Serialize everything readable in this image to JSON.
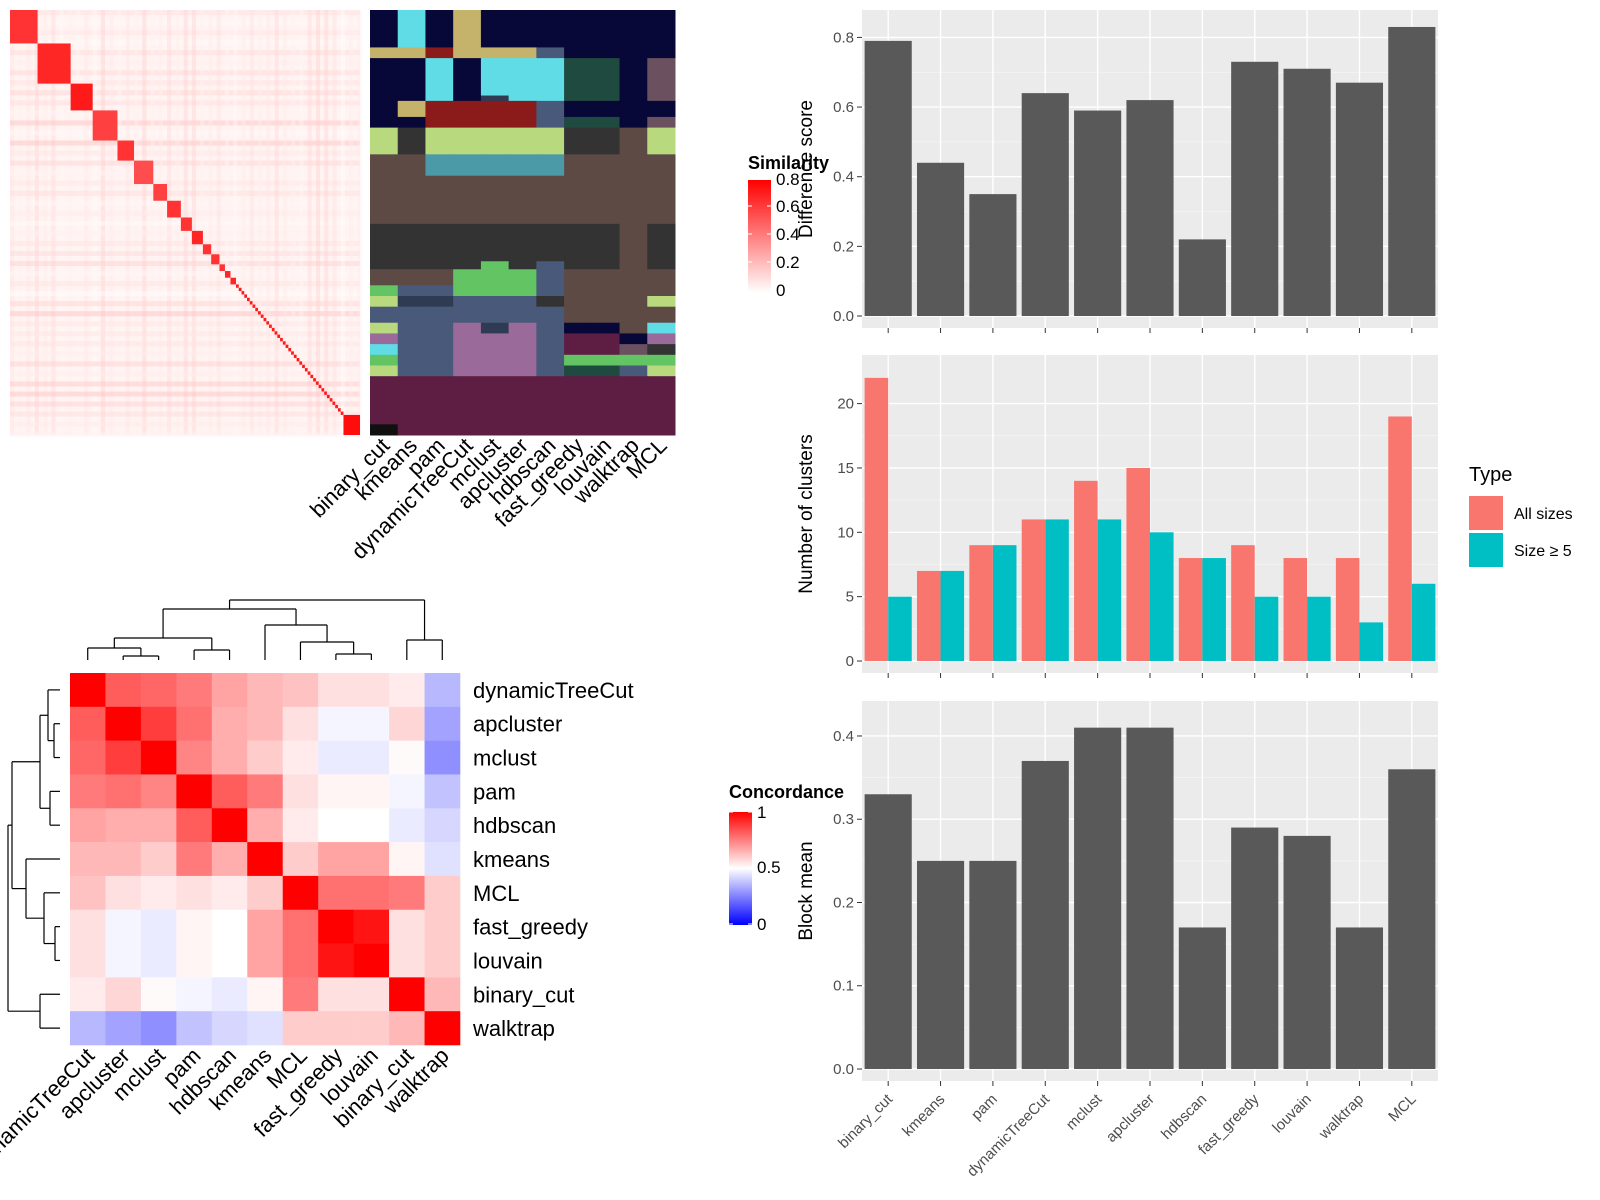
{
  "methods": [
    "binary_cut",
    "kmeans",
    "pam",
    "dynamicTreeCut",
    "mclust",
    "apcluster",
    "hdbscan",
    "fast_greedy",
    "louvain",
    "walktrap",
    "MCL"
  ],
  "colors": {
    "panel_bg": "#ebebeb",
    "bar": "#595959",
    "all_sizes": "#f8766d",
    "size5": "#00bfc4",
    "red": "#ff0000",
    "blue": "#0000ff"
  },
  "chart_data": [
    {
      "type": "heatmap",
      "name": "similarity",
      "legend_title": "Similarity",
      "legend_ticks": [
        "0.8",
        "0.6",
        "0.4",
        "0.2",
        "0"
      ],
      "block_sizes": [
        10,
        12,
        8,
        9,
        6,
        7,
        5,
        5,
        4,
        4,
        3,
        3,
        2,
        2,
        2,
        1,
        1,
        1,
        1,
        1,
        1,
        1,
        1,
        1,
        1,
        1,
        1,
        1,
        1,
        1,
        1,
        1,
        1,
        1,
        1,
        1,
        1,
        1,
        1,
        1,
        1,
        1,
        1,
        1,
        1,
        1,
        1,
        1,
        1,
        1,
        1,
        1,
        1,
        1,
        6
      ],
      "block_strength": [
        0.8,
        0.85,
        0.9,
        0.75,
        0.8,
        0.7,
        0.75,
        0.8,
        0.8,
        0.85,
        0.8,
        0.8,
        0.8,
        0.85,
        0.85,
        0.9,
        0.9,
        0.9,
        0.9,
        0.9,
        0.9,
        0.9,
        0.9,
        0.9,
        0.9,
        0.9,
        0.9,
        0.9,
        0.9,
        0.9,
        0.9,
        0.9,
        0.9,
        0.9,
        0.9,
        0.9,
        0.9,
        0.9,
        0.9,
        0.9,
        0.9,
        0.9,
        0.9,
        0.9,
        0.9,
        0.9,
        0.9,
        0.9,
        0.9,
        0.9,
        0.9,
        0.9,
        0.9,
        0.9,
        0.95
      ]
    },
    {
      "type": "heatmap",
      "name": "class_labels",
      "columns": [
        "binary_cut",
        "kmeans",
        "pam",
        "dynamicTreeCut",
        "mclust",
        "apcluster",
        "hdbscan",
        "fast_greedy",
        "louvain",
        "walktrap",
        "MCL"
      ],
      "row_groups": [
        {
          "rows": 14,
          "colors": [
            "#070738",
            "#5fdce6",
            "#070738",
            "#c5b36b",
            "#070738",
            "#070738",
            "#070738",
            "#070738",
            "#070738",
            "#070738",
            "#070738"
          ]
        },
        {
          "rows": 4,
          "colors": [
            "#c5b36b",
            "#c5b36b",
            "#8b1a1a",
            "#c5b36b",
            "#c5b36b",
            "#c5b36b",
            "#49597a",
            "#070738",
            "#070738",
            "#070738",
            "#070738"
          ]
        },
        {
          "rows": 14,
          "colors": [
            "#070738",
            "#070738",
            "#5fdce6",
            "#070738",
            "#5fdce6",
            "#5fdce6",
            "#5fdce6",
            "#1f4a3f",
            "#1f4a3f",
            "#070738",
            "#6b5060"
          ]
        },
        {
          "rows": 2,
          "colors": [
            "#070738",
            "#070738",
            "#5fdce6",
            "#070738",
            "#2f3b52",
            "#5fdce6",
            "#5fdce6",
            "#1f4a3f",
            "#1f4a3f",
            "#070738",
            "#6b5060"
          ]
        },
        {
          "rows": 6,
          "colors": [
            "#070738",
            "#c5b36b",
            "#8b1a1a",
            "#8b1a1a",
            "#8b1a1a",
            "#8b1a1a",
            "#49597a",
            "#070738",
            "#070738",
            "#070738",
            "#070738"
          ]
        },
        {
          "rows": 4,
          "colors": [
            "#070738",
            "#070738",
            "#8b1a1a",
            "#8b1a1a",
            "#8b1a1a",
            "#8b1a1a",
            "#49597a",
            "#1f4a3f",
            "#1f4a3f",
            "#070738",
            "#6b5060"
          ]
        },
        {
          "rows": 10,
          "colors": [
            "#b8d97e",
            "#333333",
            "#b8d97e",
            "#b8d97e",
            "#b8d97e",
            "#b8d97e",
            "#b8d97e",
            "#333333",
            "#333333",
            "#5e4a45",
            "#b8d97e"
          ]
        },
        {
          "rows": 8,
          "colors": [
            "#5e4a45",
            "#5e4a45",
            "#4a9aa8",
            "#4a9aa8",
            "#4a9aa8",
            "#4a9aa8",
            "#4a9aa8",
            "#5e4a45",
            "#5e4a45",
            "#5e4a45",
            "#5e4a45"
          ]
        },
        {
          "rows": 18,
          "colors": [
            "#5e4a45",
            "#5e4a45",
            "#5e4a45",
            "#5e4a45",
            "#5e4a45",
            "#5e4a45",
            "#5e4a45",
            "#5e4a45",
            "#5e4a45",
            "#5e4a45",
            "#5e4a45"
          ]
        },
        {
          "rows": 14,
          "colors": [
            "#333333",
            "#333333",
            "#333333",
            "#333333",
            "#333333",
            "#333333",
            "#333333",
            "#333333",
            "#333333",
            "#5e4a45",
            "#333333"
          ]
        },
        {
          "rows": 3,
          "colors": [
            "#333333",
            "#333333",
            "#333333",
            "#333333",
            "#62c462",
            "#333333",
            "#49597a",
            "#333333",
            "#333333",
            "#5e4a45",
            "#333333"
          ]
        },
        {
          "rows": 6,
          "colors": [
            "#5e4a45",
            "#5e4a45",
            "#5e4a45",
            "#62c462",
            "#62c462",
            "#62c462",
            "#49597a",
            "#5e4a45",
            "#5e4a45",
            "#5e4a45",
            "#5e4a45"
          ]
        },
        {
          "rows": 4,
          "colors": [
            "#62c462",
            "#49597a",
            "#49597a",
            "#62c462",
            "#62c462",
            "#62c462",
            "#49597a",
            "#5e4a45",
            "#5e4a45",
            "#5e4a45",
            "#5e4a45"
          ]
        },
        {
          "rows": 4,
          "colors": [
            "#b8d97e",
            "#2f3b52",
            "#2f3b52",
            "#49597a",
            "#49597a",
            "#49597a",
            "#333333",
            "#5e4a45",
            "#5e4a45",
            "#5e4a45",
            "#b8d97e"
          ]
        },
        {
          "rows": 6,
          "colors": [
            "#49597a",
            "#49597a",
            "#49597a",
            "#49597a",
            "#49597a",
            "#49597a",
            "#49597a",
            "#5e4a45",
            "#5e4a45",
            "#5e4a45",
            "#5e4a45"
          ]
        },
        {
          "rows": 4,
          "colors": [
            "#b8d97e",
            "#49597a",
            "#49597a",
            "#9a6b9a",
            "#2f3b52",
            "#9a6b9a",
            "#49597a",
            "#070738",
            "#070738",
            "#5e4a45",
            "#5fdce6"
          ]
        },
        {
          "rows": 4,
          "colors": [
            "#9a6b9a",
            "#49597a",
            "#49597a",
            "#9a6b9a",
            "#9a6b9a",
            "#9a6b9a",
            "#49597a",
            "#5e1e44",
            "#5e1e44",
            "#070738",
            "#9a6b9a"
          ]
        },
        {
          "rows": 4,
          "colors": [
            "#5fdce6",
            "#49597a",
            "#49597a",
            "#9a6b9a",
            "#9a6b9a",
            "#9a6b9a",
            "#49597a",
            "#5e1e44",
            "#5e1e44",
            "#6b5060",
            "#333333"
          ]
        },
        {
          "rows": 4,
          "colors": [
            "#62c462",
            "#49597a",
            "#49597a",
            "#9a6b9a",
            "#9a6b9a",
            "#9a6b9a",
            "#49597a",
            "#62c462",
            "#62c462",
            "#62c462",
            "#62c462"
          ]
        },
        {
          "rows": 4,
          "colors": [
            "#b8d97e",
            "#49597a",
            "#49597a",
            "#9a6b9a",
            "#9a6b9a",
            "#9a6b9a",
            "#49597a",
            "#1f4a3f",
            "#1f4a3f",
            "#49597a",
            "#b8d97e"
          ]
        },
        {
          "rows": 18,
          "colors": [
            "#5e1e44",
            "#5e1e44",
            "#5e1e44",
            "#5e1e44",
            "#5e1e44",
            "#5e1e44",
            "#5e1e44",
            "#5e1e44",
            "#5e1e44",
            "#5e1e44",
            "#5e1e44"
          ]
        },
        {
          "rows": 4,
          "colors": [
            "#101010",
            "#5e1e44",
            "#5e1e44",
            "#5e1e44",
            "#5e1e44",
            "#5e1e44",
            "#5e1e44",
            "#5e1e44",
            "#5e1e44",
            "#5e1e44",
            "#5e1e44"
          ]
        }
      ]
    },
    {
      "type": "heatmap",
      "name": "concordance",
      "legend_title": "Concordance",
      "legend_ticks": [
        "1",
        "0.5",
        "0"
      ],
      "order": [
        "dynamicTreeCut",
        "apcluster",
        "mclust",
        "pam",
        "hdbscan",
        "kmeans",
        "MCL",
        "fast_greedy",
        "louvain",
        "binary_cut",
        "walktrap"
      ],
      "matrix": [
        [
          1.0,
          0.82,
          0.8,
          0.76,
          0.68,
          0.64,
          0.62,
          0.56,
          0.56,
          0.54,
          0.36
        ],
        [
          0.82,
          1.0,
          0.88,
          0.78,
          0.66,
          0.64,
          0.56,
          0.48,
          0.48,
          0.58,
          0.32
        ],
        [
          0.8,
          0.88,
          1.0,
          0.74,
          0.66,
          0.6,
          0.54,
          0.46,
          0.46,
          0.51,
          0.28
        ],
        [
          0.76,
          0.78,
          0.74,
          1.0,
          0.82,
          0.76,
          0.56,
          0.52,
          0.52,
          0.48,
          0.38
        ],
        [
          0.68,
          0.66,
          0.66,
          0.82,
          1.0,
          0.66,
          0.54,
          0.5,
          0.5,
          0.46,
          0.42
        ],
        [
          0.64,
          0.64,
          0.6,
          0.76,
          0.66,
          1.0,
          0.6,
          0.68,
          0.68,
          0.52,
          0.44
        ],
        [
          0.62,
          0.56,
          0.54,
          0.56,
          0.54,
          0.6,
          1.0,
          0.78,
          0.78,
          0.76,
          0.6
        ],
        [
          0.56,
          0.48,
          0.46,
          0.52,
          0.5,
          0.68,
          0.78,
          1.0,
          0.96,
          0.56,
          0.6
        ],
        [
          0.56,
          0.48,
          0.46,
          0.52,
          0.5,
          0.68,
          0.78,
          0.96,
          1.0,
          0.56,
          0.6
        ],
        [
          0.54,
          0.58,
          0.51,
          0.48,
          0.46,
          0.52,
          0.76,
          0.56,
          0.56,
          1.0,
          0.64
        ],
        [
          0.36,
          0.32,
          0.28,
          0.38,
          0.42,
          0.44,
          0.6,
          0.6,
          0.6,
          0.64,
          1.0
        ]
      ]
    },
    {
      "type": "bar",
      "name": "difference",
      "categories": [
        "binary_cut",
        "kmeans",
        "pam",
        "dynamicTreeCut",
        "mclust",
        "apcluster",
        "hdbscan",
        "fast_greedy",
        "louvain",
        "walktrap",
        "MCL"
      ],
      "values": [
        0.79,
        0.44,
        0.35,
        0.64,
        0.59,
        0.62,
        0.22,
        0.73,
        0.71,
        0.67,
        0.83
      ],
      "ylabel": "Difference score",
      "ylim": [
        0,
        0.85
      ],
      "yticks": [
        0.0,
        0.2,
        0.4,
        0.6,
        0.8
      ],
      "ytick_labels": [
        "0.0",
        "0.2",
        "0.4",
        "0.6",
        "0.8"
      ]
    },
    {
      "type": "bar",
      "name": "clusters",
      "categories": [
        "binary_cut",
        "kmeans",
        "pam",
        "dynamicTreeCut",
        "mclust",
        "apcluster",
        "hdbscan",
        "fast_greedy",
        "louvain",
        "walktrap",
        "MCL"
      ],
      "series": [
        {
          "name": "All sizes",
          "values": [
            22,
            7,
            9,
            11,
            14,
            15,
            8,
            9,
            8,
            8,
            19
          ]
        },
        {
          "name": "Size ≥ 5",
          "values": [
            5,
            7,
            9,
            11,
            11,
            10,
            8,
            5,
            5,
            3,
            6
          ]
        }
      ],
      "ylabel": "Number of clusters",
      "ylim": [
        0,
        23
      ],
      "yticks": [
        0,
        5,
        10,
        15,
        20
      ],
      "ytick_labels": [
        "0",
        "5",
        "10",
        "15",
        "20"
      ],
      "legend_title": "Type",
      "legend": "right"
    },
    {
      "type": "bar",
      "name": "blockmean",
      "categories": [
        "binary_cut",
        "kmeans",
        "pam",
        "dynamicTreeCut",
        "mclust",
        "apcluster",
        "hdbscan",
        "fast_greedy",
        "louvain",
        "walktrap",
        "MCL"
      ],
      "values": [
        0.33,
        0.25,
        0.25,
        0.37,
        0.41,
        0.41,
        0.17,
        0.29,
        0.28,
        0.17,
        0.36
      ],
      "ylabel": "Block mean",
      "ylim": [
        0,
        0.43
      ],
      "yticks": [
        0.0,
        0.1,
        0.2,
        0.3,
        0.4
      ],
      "ytick_labels": [
        "0.0",
        "0.1",
        "0.2",
        "0.3",
        "0.4"
      ]
    }
  ]
}
